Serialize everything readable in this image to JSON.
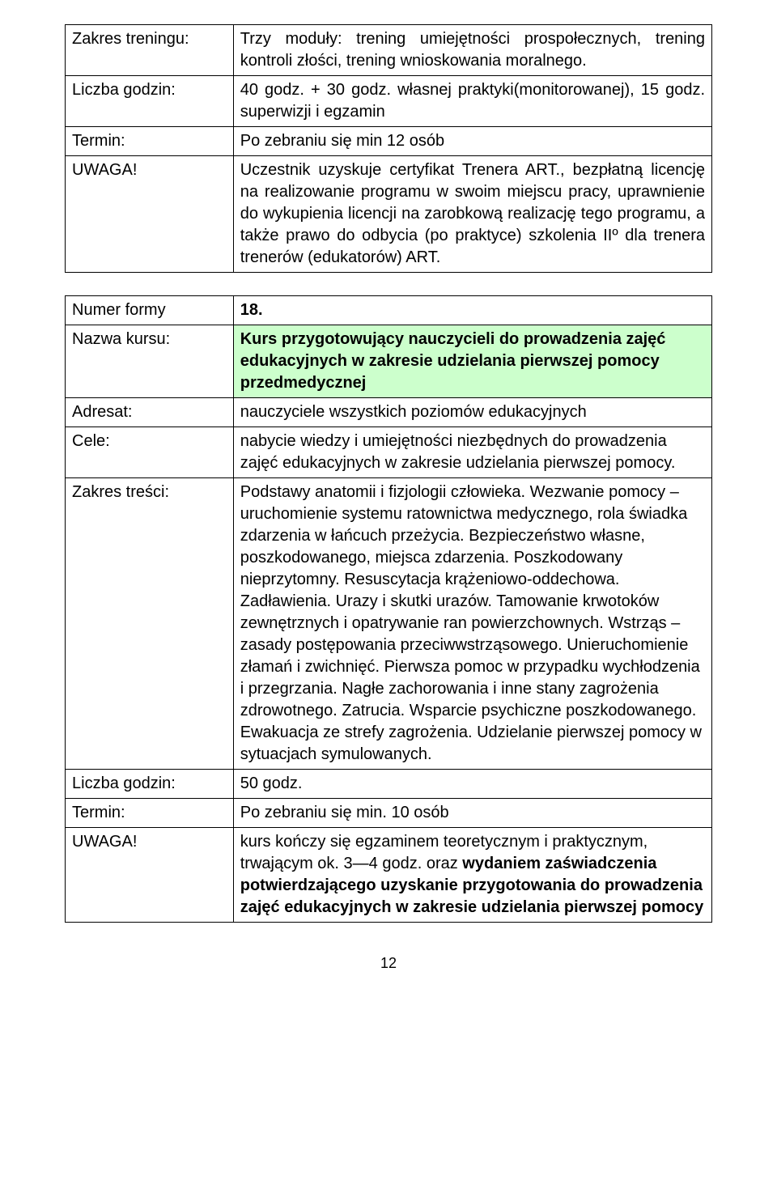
{
  "table1": {
    "rows": [
      {
        "label": "Zakres treningu:",
        "value": "Trzy moduły: trening umiejętności prospołecznych, trening kontroli złości, trening wnioskowania moralnego.",
        "justify": true
      },
      {
        "label": "Liczba godzin:",
        "value": "40 godz. + 30 godz. własnej praktyki(monitorowanej), 15 godz. superwizji i egzamin",
        "justify": true
      },
      {
        "label": "Termin:",
        "value": "Po zebraniu się min 12 osób",
        "justify": false
      },
      {
        "label": "UWAGA!",
        "value": "Uczestnik uzyskuje certyfikat Trenera ART., bezpłatną licencję na realizowanie programu w swoim miejscu pracy, uprawnienie do wykupienia licencji na zarobkową realizację tego programu, a także prawo do odbycia (po praktyce) szkolenia IIº dla trenera trenerów (edukatorów) ART.",
        "justify": true
      }
    ]
  },
  "table2": {
    "rows": [
      {
        "label": "Numer formy",
        "value_parts": [
          {
            "text": "  18.",
            "bold": true
          }
        ],
        "highlight": false,
        "justify": false
      },
      {
        "label": "Nazwa kursu:",
        "value_parts": [
          {
            "text": "Kurs przygotowujący  nauczycieli do prowadzenia zajęć edukacyjnych w zakresie udzielania pierwszej pomocy przedmedycznej",
            "bold": true
          }
        ],
        "highlight": true,
        "justify": false
      },
      {
        "label": "Adresat:",
        "value_parts": [
          {
            "text": "nauczyciele wszystkich poziomów edukacyjnych",
            "bold": false
          }
        ],
        "highlight": false,
        "justify": false
      },
      {
        "label": "Cele:",
        "value_parts": [
          {
            "text": "nabycie wiedzy i umiejętności niezbędnych do prowadzenia zajęć edukacyjnych w zakresie udzielania pierwszej pomocy.",
            "bold": false
          }
        ],
        "highlight": false,
        "justify": false
      },
      {
        "label": "Zakres treści:",
        "value_parts": [
          {
            "text": "Podstawy anatomii i fizjologii człowieka. Wezwanie pomocy – uruchomienie systemu ratownictwa medycznego, rola świadka zdarzenia w łańcuch przeżycia. Bezpieczeństwo własne, poszkodowanego, miejsca zdarzenia. Poszkodowany nieprzytomny. Resuscytacja krążeniowo-oddechowa. Zadławienia. Urazy i skutki urazów. Tamowanie krwotoków zewnętrznych i opatrywanie ran powierzchownych. Wstrząs – zasady postępowania przeciwwstrząsowego. Unieruchomienie złamań i zwichnięć. Pierwsza pomoc w przypadku wychłodzenia i przegrzania. Nagłe zachorowania i inne stany zagrożenia zdrowotnego. Zatrucia. Wsparcie psychiczne poszkodowanego. Ewakuacja ze strefy zagrożenia. Udzielanie pierwszej pomocy w sytuacjach symulowanych.",
            "bold": false
          }
        ],
        "highlight": false,
        "justify": false
      },
      {
        "label": "Liczba godzin:",
        "value_parts": [
          {
            "text": "50 godz.",
            "bold": false
          }
        ],
        "highlight": false,
        "justify": false
      },
      {
        "label": "Termin:",
        "value_parts": [
          {
            "text": "Po zebraniu się min. 10 osób",
            "bold": false
          }
        ],
        "highlight": false,
        "justify": false
      },
      {
        "label": "UWAGA!",
        "value_parts": [
          {
            "text": "kurs kończy się egzaminem teoretycznym i praktycznym, trwającym ok. 3—4 godz. oraz ",
            "bold": false
          },
          {
            "text": "wydaniem zaświadczenia potwierdzającego uzyskanie przygotowania do prowadzenia zajęć edukacyjnych w zakresie udzielania pierwszej pomocy",
            "bold": true
          }
        ],
        "highlight": false,
        "justify": false
      }
    ]
  },
  "page_number": "12",
  "colors": {
    "highlight_bg": "#ccffcc",
    "border": "#000000",
    "text": "#000000",
    "page_bg": "#ffffff"
  }
}
